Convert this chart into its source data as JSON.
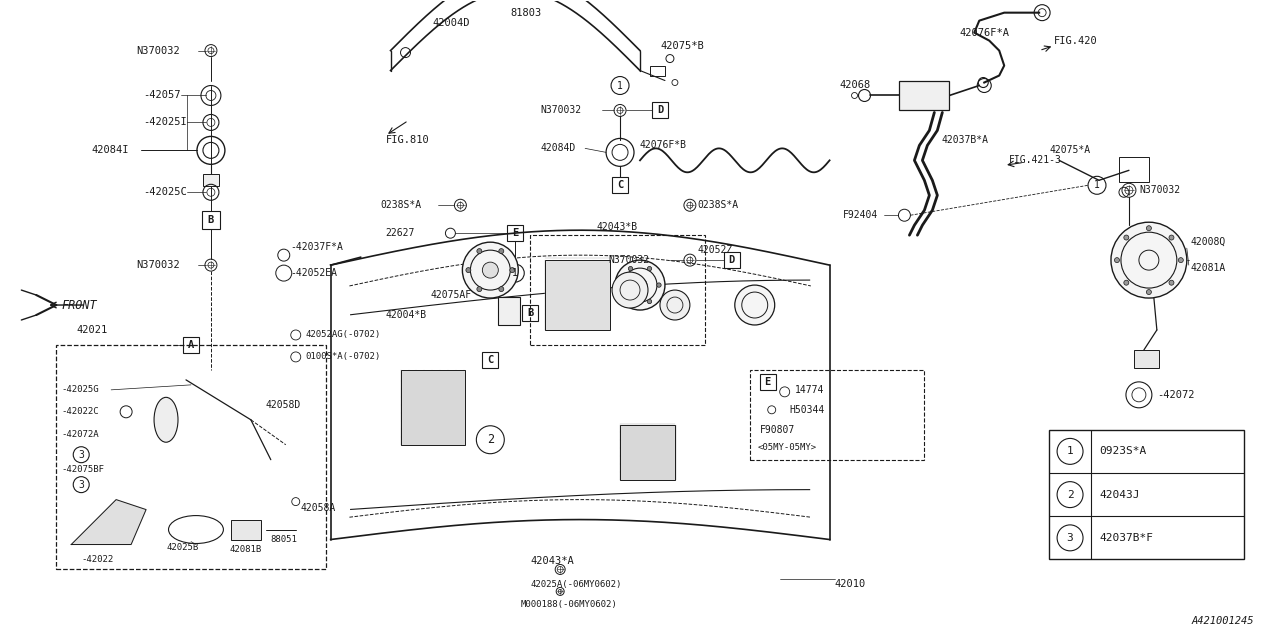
{
  "bg_color": "#ffffff",
  "line_color": "#1a1a1a",
  "fig_width": 12.8,
  "fig_height": 6.4,
  "legend_items": [
    {
      "num": "1",
      "code": "0923S*A"
    },
    {
      "num": "2",
      "code": "42043J"
    },
    {
      "num": "3",
      "code": "42037B*F"
    }
  ]
}
